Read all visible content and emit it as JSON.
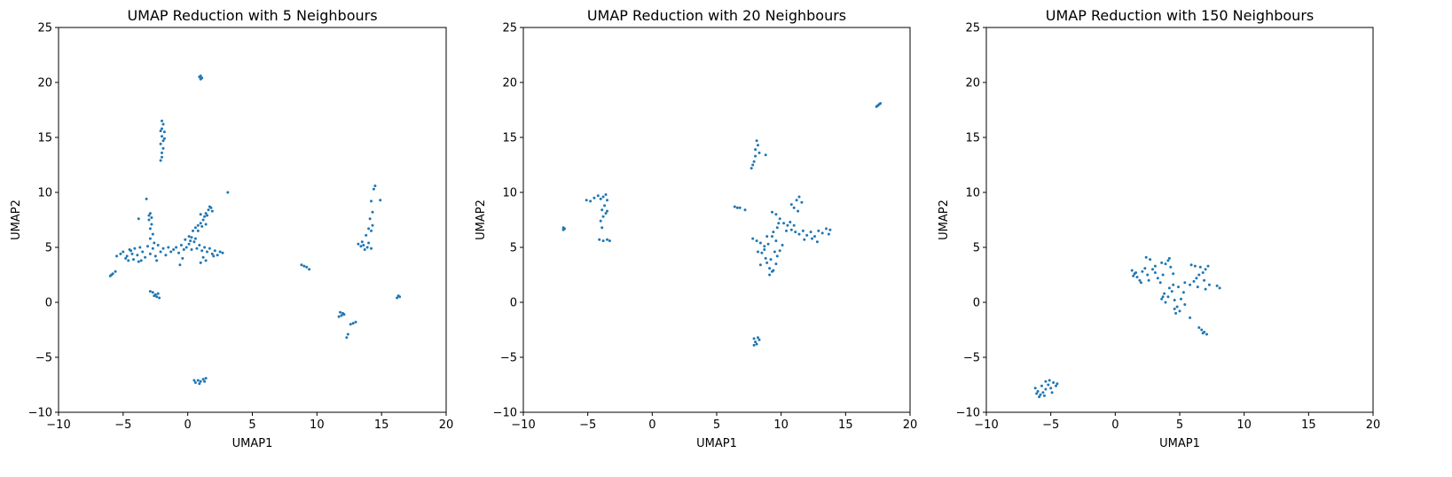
{
  "chart_data": [
    {
      "type": "scatter",
      "title": "UMAP Reduction with 5 Neighbours",
      "xlabel": "UMAP1",
      "ylabel": "UMAP2",
      "xlim": [
        -10,
        20
      ],
      "ylim": [
        -10,
        25
      ],
      "xticks": [
        -10,
        -5,
        0,
        5,
        10,
        15,
        20
      ],
      "yticks": [
        -10,
        -5,
        0,
        5,
        10,
        15,
        20,
        25
      ],
      "grid": false,
      "color": "#1f77b4",
      "points": [
        [
          1.0,
          20.6
        ],
        [
          0.9,
          20.5
        ],
        [
          1.1,
          20.4
        ],
        [
          1.0,
          20.3
        ],
        [
          -2.0,
          16.5
        ],
        [
          -1.9,
          16.2
        ],
        [
          -2.0,
          15.8
        ],
        [
          -1.8,
          15.5
        ],
        [
          -2.0,
          15.1
        ],
        [
          -1.9,
          14.7
        ],
        [
          -2.1,
          14.4
        ],
        [
          -1.9,
          14.0
        ],
        [
          -2.0,
          13.6
        ],
        [
          -2.0,
          13.2
        ],
        [
          -2.1,
          12.9
        ],
        [
          -1.8,
          14.9
        ],
        [
          -2.1,
          15.6
        ],
        [
          -3.2,
          9.4
        ],
        [
          -2.9,
          8.1
        ],
        [
          -2.8,
          7.7
        ],
        [
          -3.0,
          7.5
        ],
        [
          -2.8,
          7.1
        ],
        [
          -2.9,
          6.7
        ],
        [
          -2.7,
          6.2
        ],
        [
          -2.9,
          5.8
        ],
        [
          -2.6,
          5.4
        ],
        [
          -3.8,
          7.6
        ],
        [
          -3.0,
          7.9
        ],
        [
          -6.0,
          2.4
        ],
        [
          -5.8,
          2.6
        ],
        [
          -5.6,
          2.8
        ],
        [
          -5.9,
          2.5
        ],
        [
          -5.5,
          4.2
        ],
        [
          -5.2,
          4.4
        ],
        [
          -5.0,
          4.6
        ],
        [
          -4.7,
          4.2
        ],
        [
          -4.5,
          4.8
        ],
        [
          -4.3,
          4.4
        ],
        [
          -4.1,
          4.9
        ],
        [
          -3.9,
          4.3
        ],
        [
          -3.7,
          5.0
        ],
        [
          -3.5,
          4.6
        ],
        [
          -3.3,
          4.1
        ],
        [
          -3.1,
          5.1
        ],
        [
          -2.9,
          4.4
        ],
        [
          -2.7,
          4.9
        ],
        [
          -2.5,
          4.2
        ],
        [
          -2.3,
          5.2
        ],
        [
          -2.1,
          4.6
        ],
        [
          -1.9,
          4.9
        ],
        [
          -1.7,
          4.3
        ],
        [
          -1.5,
          5.0
        ],
        [
          -1.3,
          4.6
        ],
        [
          -1.1,
          4.8
        ],
        [
          -0.9,
          5.0
        ],
        [
          -0.7,
          4.5
        ],
        [
          -0.5,
          5.2
        ],
        [
          -0.3,
          4.8
        ],
        [
          -0.1,
          5.0
        ],
        [
          0.1,
          5.3
        ],
        [
          0.3,
          4.8
        ],
        [
          0.5,
          5.5
        ],
        [
          0.7,
          4.9
        ],
        [
          0.9,
          5.2
        ],
        [
          1.1,
          4.7
        ],
        [
          1.3,
          5.0
        ],
        [
          1.5,
          4.6
        ],
        [
          1.7,
          4.9
        ],
        [
          1.9,
          4.4
        ],
        [
          2.1,
          4.7
        ],
        [
          2.3,
          4.3
        ],
        [
          2.5,
          4.6
        ],
        [
          2.7,
          4.5
        ],
        [
          -4.8,
          4.0
        ],
        [
          -4.6,
          3.8
        ],
        [
          -4.2,
          3.9
        ],
        [
          -3.8,
          3.7
        ],
        [
          -4.4,
          4.7
        ],
        [
          -3.6,
          3.8
        ],
        [
          -2.4,
          3.8
        ],
        [
          -0.4,
          4.0
        ],
        [
          1.2,
          4.1
        ],
        [
          1.4,
          3.8
        ],
        [
          2.0,
          4.2
        ],
        [
          1.0,
          3.6
        ],
        [
          -0.6,
          3.4
        ],
        [
          -2.9,
          1.0
        ],
        [
          -2.7,
          0.9
        ],
        [
          -2.5,
          0.7
        ],
        [
          -2.4,
          0.5
        ],
        [
          -2.2,
          0.4
        ],
        [
          -2.6,
          0.6
        ],
        [
          -2.3,
          0.8
        ],
        [
          0.1,
          6.0
        ],
        [
          0.3,
          5.9
        ],
        [
          0.6,
          5.8
        ],
        [
          0.2,
          5.6
        ],
        [
          -0.2,
          5.7
        ],
        [
          0.4,
          6.5
        ],
        [
          0.6,
          6.8
        ],
        [
          0.8,
          7.0
        ],
        [
          1.0,
          7.2
        ],
        [
          1.2,
          7.5
        ],
        [
          1.3,
          7.8
        ],
        [
          1.4,
          8.1
        ],
        [
          1.6,
          8.4
        ],
        [
          1.8,
          8.6
        ],
        [
          1.9,
          8.3
        ],
        [
          1.7,
          8.7
        ],
        [
          1.5,
          7.9
        ],
        [
          1.1,
          6.9
        ],
        [
          0.8,
          6.5
        ],
        [
          1.4,
          7.1
        ],
        [
          1.0,
          8.0
        ],
        [
          3.1,
          10.0
        ],
        [
          0.8,
          -7.1
        ],
        [
          1.0,
          -7.2
        ],
        [
          0.6,
          -7.3
        ],
        [
          1.2,
          -7.0
        ],
        [
          1.4,
          -6.9
        ],
        [
          0.9,
          -7.4
        ],
        [
          0.5,
          -7.1
        ],
        [
          1.3,
          -7.2
        ],
        [
          8.8,
          3.4
        ],
        [
          9.2,
          3.2
        ],
        [
          9.4,
          3.0
        ],
        [
          9.0,
          3.3
        ],
        [
          14.5,
          10.6
        ],
        [
          14.4,
          10.3
        ],
        [
          14.2,
          9.2
        ],
        [
          14.3,
          8.2
        ],
        [
          14.1,
          7.6
        ],
        [
          14.3,
          7.0
        ],
        [
          14.0,
          6.7
        ],
        [
          13.8,
          6.1
        ],
        [
          14.2,
          6.5
        ],
        [
          13.6,
          5.2
        ],
        [
          13.9,
          5.0
        ],
        [
          13.4,
          5.1
        ],
        [
          13.2,
          5.3
        ],
        [
          13.5,
          5.5
        ],
        [
          14.2,
          4.9
        ],
        [
          13.7,
          4.8
        ],
        [
          14.0,
          5.4
        ],
        [
          14.9,
          9.3
        ],
        [
          16.3,
          0.6
        ],
        [
          16.4,
          0.5
        ],
        [
          16.2,
          0.4
        ],
        [
          11.8,
          -0.9
        ],
        [
          12.0,
          -1.0
        ],
        [
          11.9,
          -1.2
        ],
        [
          12.1,
          -1.1
        ],
        [
          11.7,
          -1.3
        ],
        [
          12.4,
          -2.9
        ],
        [
          12.3,
          -3.2
        ],
        [
          12.8,
          -1.9
        ],
        [
          13.0,
          -1.8
        ],
        [
          12.6,
          -2.0
        ]
      ]
    },
    {
      "type": "scatter",
      "title": "UMAP Reduction with 20 Neighbours",
      "xlabel": "UMAP1",
      "ylabel": "UMAP2",
      "xlim": [
        -10,
        20
      ],
      "ylim": [
        -10,
        25
      ],
      "xticks": [
        -10,
        -5,
        0,
        5,
        10,
        15,
        20
      ],
      "yticks": [
        -10,
        -5,
        0,
        5,
        10,
        15,
        20,
        25
      ],
      "grid": false,
      "color": "#1f77b4",
      "points": [
        [
          17.5,
          17.9
        ],
        [
          17.6,
          18.0
        ],
        [
          17.4,
          17.8
        ],
        [
          17.7,
          18.1
        ],
        [
          -6.9,
          6.8
        ],
        [
          -6.8,
          6.7
        ],
        [
          -6.9,
          6.6
        ],
        [
          -5.1,
          9.3
        ],
        [
          -4.8,
          9.2
        ],
        [
          -4.5,
          9.5
        ],
        [
          -4.2,
          9.7
        ],
        [
          -4.0,
          9.4
        ],
        [
          -3.8,
          9.6
        ],
        [
          -3.6,
          9.8
        ],
        [
          -3.5,
          9.3
        ],
        [
          -3.7,
          8.8
        ],
        [
          -3.9,
          8.4
        ],
        [
          -3.6,
          8.1
        ],
        [
          -3.8,
          7.8
        ],
        [
          -3.5,
          8.3
        ],
        [
          -4.0,
          7.4
        ],
        [
          -3.9,
          6.8
        ],
        [
          -4.1,
          5.7
        ],
        [
          -3.8,
          5.6
        ],
        [
          -3.5,
          5.7
        ],
        [
          -3.3,
          5.6
        ],
        [
          8.1,
          14.7
        ],
        [
          8.2,
          14.3
        ],
        [
          8.0,
          13.9
        ],
        [
          8.3,
          13.6
        ],
        [
          8.0,
          13.3
        ],
        [
          7.9,
          12.8
        ],
        [
          7.8,
          12.5
        ],
        [
          7.7,
          12.2
        ],
        [
          8.8,
          13.4
        ],
        [
          6.4,
          8.7
        ],
        [
          6.6,
          8.6
        ],
        [
          6.8,
          8.6
        ],
        [
          7.2,
          8.4
        ],
        [
          7.8,
          5.8
        ],
        [
          8.1,
          5.6
        ],
        [
          8.4,
          5.4
        ],
        [
          8.7,
          5.1
        ],
        [
          8.5,
          4.5
        ],
        [
          8.8,
          4.0
        ],
        [
          8.4,
          3.4
        ],
        [
          8.9,
          3.6
        ],
        [
          9.1,
          3.1
        ],
        [
          9.3,
          2.8
        ],
        [
          9.1,
          2.5
        ],
        [
          9.4,
          2.9
        ],
        [
          9.6,
          3.5
        ],
        [
          9.7,
          4.2
        ],
        [
          9.9,
          4.7
        ],
        [
          10.1,
          5.2
        ],
        [
          9.6,
          5.6
        ],
        [
          9.3,
          6.0
        ],
        [
          9.0,
          5.3
        ],
        [
          9.5,
          4.6
        ],
        [
          9.2,
          3.9
        ],
        [
          8.7,
          4.8
        ],
        [
          8.2,
          4.6
        ],
        [
          8.9,
          6.0
        ],
        [
          9.4,
          6.4
        ],
        [
          9.3,
          8.2
        ],
        [
          9.6,
          8.0
        ],
        [
          9.9,
          7.6
        ],
        [
          10.2,
          7.2
        ],
        [
          10.5,
          7.0
        ],
        [
          10.8,
          6.6
        ],
        [
          11.1,
          6.4
        ],
        [
          11.4,
          6.2
        ],
        [
          11.7,
          6.5
        ],
        [
          12.0,
          6.1
        ],
        [
          12.3,
          6.4
        ],
        [
          12.6,
          6.0
        ],
        [
          12.9,
          6.5
        ],
        [
          13.2,
          6.3
        ],
        [
          13.5,
          6.7
        ],
        [
          13.7,
          6.2
        ],
        [
          13.8,
          6.6
        ],
        [
          12.4,
          5.8
        ],
        [
          11.8,
          5.7
        ],
        [
          12.8,
          5.5
        ],
        [
          10.7,
          7.3
        ],
        [
          11.0,
          7.0
        ],
        [
          9.8,
          7.2
        ],
        [
          10.4,
          6.5
        ],
        [
          9.7,
          6.8
        ],
        [
          11.2,
          9.3
        ],
        [
          11.4,
          9.6
        ],
        [
          11.6,
          9.1
        ],
        [
          11.0,
          8.6
        ],
        [
          10.8,
          8.9
        ],
        [
          11.3,
          8.3
        ],
        [
          7.9,
          -3.3
        ],
        [
          8.2,
          -3.2
        ],
        [
          8.0,
          -3.6
        ],
        [
          8.3,
          -3.4
        ],
        [
          7.9,
          -3.9
        ],
        [
          8.1,
          -3.8
        ]
      ]
    },
    {
      "type": "scatter",
      "title": "UMAP Reduction with 150 Neighbours",
      "xlabel": "UMAP1",
      "ylabel": "UMAP2",
      "xlim": [
        -10,
        20
      ],
      "ylim": [
        -10,
        25
      ],
      "xticks": [
        -10,
        -5,
        0,
        5,
        10,
        15,
        20
      ],
      "yticks": [
        -10,
        -5,
        0,
        5,
        10,
        15,
        20,
        25
      ],
      "grid": false,
      "color": "#1f77b4",
      "points": [
        [
          1.3,
          2.9
        ],
        [
          1.5,
          2.6
        ],
        [
          1.7,
          2.3
        ],
        [
          1.9,
          2.0
        ],
        [
          2.1,
          2.8
        ],
        [
          2.3,
          3.1
        ],
        [
          2.5,
          2.5
        ],
        [
          2.4,
          4.1
        ],
        [
          2.7,
          3.9
        ],
        [
          2.9,
          3.0
        ],
        [
          3.1,
          2.7
        ],
        [
          3.3,
          2.2
        ],
        [
          3.5,
          1.8
        ],
        [
          3.7,
          2.5
        ],
        [
          3.9,
          3.5
        ],
        [
          4.1,
          3.8
        ],
        [
          4.3,
          3.2
        ],
        [
          4.5,
          2.6
        ],
        [
          4.2,
          4.0
        ],
        [
          3.6,
          3.6
        ],
        [
          3.1,
          3.3
        ],
        [
          2.6,
          2.0
        ],
        [
          2.0,
          1.8
        ],
        [
          1.6,
          2.7
        ],
        [
          1.4,
          2.4
        ],
        [
          3.8,
          0.8
        ],
        [
          3.6,
          0.3
        ],
        [
          3.9,
          0.0
        ],
        [
          4.1,
          0.5
        ],
        [
          4.4,
          1.0
        ],
        [
          4.6,
          0.2
        ],
        [
          4.8,
          -0.4
        ],
        [
          5.0,
          -0.8
        ],
        [
          4.7,
          -1.0
        ],
        [
          5.1,
          0.3
        ],
        [
          5.3,
          0.9
        ],
        [
          4.9,
          1.4
        ],
        [
          4.5,
          1.6
        ],
        [
          4.2,
          1.3
        ],
        [
          5.4,
          -0.2
        ],
        [
          4.6,
          -0.6
        ],
        [
          3.7,
          0.5
        ],
        [
          5.8,
          -1.4
        ],
        [
          5.4,
          1.8
        ],
        [
          5.8,
          1.6
        ],
        [
          6.1,
          1.9
        ],
        [
          6.3,
          2.2
        ],
        [
          6.5,
          2.5
        ],
        [
          6.8,
          2.7
        ],
        [
          7.0,
          3.0
        ],
        [
          6.6,
          3.2
        ],
        [
          6.2,
          3.3
        ],
        [
          5.9,
          3.4
        ],
        [
          7.2,
          3.3
        ],
        [
          6.9,
          2.0
        ],
        [
          7.3,
          1.6
        ],
        [
          7.0,
          1.2
        ],
        [
          6.4,
          1.4
        ],
        [
          7.9,
          1.5
        ],
        [
          8.1,
          1.3
        ],
        [
          6.5,
          -2.3
        ],
        [
          6.7,
          -2.5
        ],
        [
          6.9,
          -2.7
        ],
        [
          7.1,
          -2.9
        ],
        [
          6.8,
          -2.8
        ],
        [
          -6.2,
          -7.8
        ],
        [
          -6.0,
          -8.1
        ],
        [
          -5.8,
          -8.4
        ],
        [
          -5.6,
          -8.2
        ],
        [
          -5.4,
          -7.9
        ],
        [
          -5.2,
          -7.5
        ],
        [
          -5.4,
          -7.2
        ],
        [
          -5.1,
          -7.1
        ],
        [
          -4.8,
          -7.3
        ],
        [
          -4.6,
          -7.6
        ],
        [
          -4.5,
          -7.4
        ],
        [
          -5.0,
          -7.8
        ],
        [
          -5.7,
          -7.6
        ],
        [
          -6.1,
          -8.3
        ],
        [
          -5.9,
          -8.6
        ],
        [
          -5.5,
          -8.5
        ],
        [
          -4.9,
          -8.2
        ]
      ]
    }
  ]
}
